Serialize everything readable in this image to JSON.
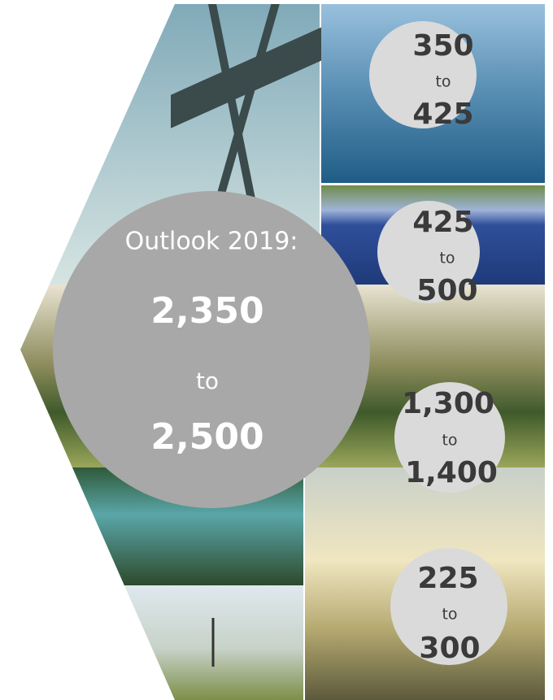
{
  "main": {
    "label": "Outlook 2019:",
    "from": "2,350",
    "to_word": "to",
    "to": "2,500"
  },
  "segments": [
    {
      "from": "350",
      "to_word": "to",
      "to": "425"
    },
    {
      "from": "425",
      "to_word": "to",
      "to": "500"
    },
    {
      "from": "1,300",
      "to_word": "to",
      "to": "1,400"
    },
    {
      "from": "225",
      "to_word": "to",
      "to": "300"
    }
  ]
}
